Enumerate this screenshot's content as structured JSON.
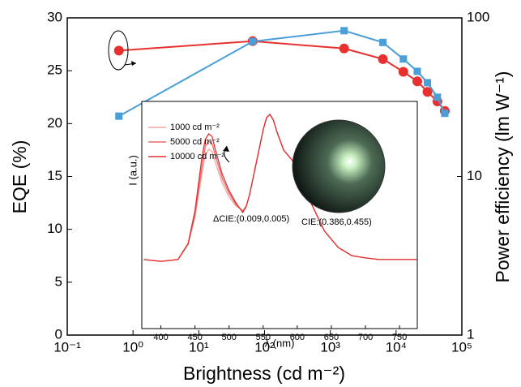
{
  "chart_data": [
    {
      "type": "line",
      "x_label": "Brightness (cd m⁻²)",
      "y_label": "EQE (%)",
      "y2_label": "Power efficiency (lm W⁻¹)",
      "xlog": true,
      "y2log": true,
      "x": [
        0.61,
        66,
        1620,
        6300,
        12900,
        21000,
        30000,
        42500,
        55000
      ],
      "series": [
        {
          "color": "#e8312f",
          "marker": "circle",
          "values": [
            26.9,
            27.8,
            27.1,
            26.1,
            24.9,
            24.0,
            23.0,
            22.1,
            21.2
          ]
        },
        {
          "color": "#4a9fd8",
          "marker": "square",
          "axis": "y2",
          "values": [
            24,
            71,
            83,
            70,
            55,
            46,
            39,
            31.6,
            25
          ]
        }
      ],
      "xlim": [
        0.1,
        100000
      ],
      "xticks": [
        {
          "value": 0.1,
          "label": "10⁻¹"
        },
        {
          "value": 1,
          "label": "10⁰"
        },
        {
          "value": 10,
          "label": "10¹"
        },
        {
          "value": 100,
          "label": "10²"
        },
        {
          "value": 1000,
          "label": "10³"
        },
        {
          "value": 10000,
          "label": "10⁴"
        },
        {
          "value": 100000,
          "label": "10⁵"
        }
      ],
      "ylim": [
        0,
        30
      ],
      "yticks": [
        0,
        5,
        10,
        15,
        20,
        25,
        30
      ],
      "y2lim": [
        1,
        100
      ],
      "y2ticks": [
        1,
        10,
        100
      ]
    },
    {
      "type": "line",
      "x_label": "λ (nm)",
      "y_label": "I (a.u.)",
      "x": [
        375,
        400,
        425,
        440,
        450,
        460,
        465,
        470,
        475,
        480,
        490,
        500,
        510,
        520,
        525,
        530,
        540,
        550,
        555,
        560,
        565,
        570,
        580,
        590,
        600,
        610,
        620,
        640,
        660,
        680,
        700,
        720,
        740,
        760,
        775
      ],
      "series": [
        {
          "name": "1000 cd m⁻²",
          "color": "#f4a3a3",
          "values": [
            0.304,
            0.296,
            0.304,
            0.37,
            0.49,
            0.68,
            0.76,
            0.79,
            0.78,
            0.73,
            0.64,
            0.58,
            0.54,
            0.52,
            0.54,
            0.59,
            0.73,
            0.875,
            0.929,
            0.943,
            0.918,
            0.868,
            0.786,
            0.75,
            0.714,
            0.643,
            0.554,
            0.429,
            0.357,
            0.321,
            0.311,
            0.304,
            0.304,
            0.304,
            0.304
          ]
        },
        {
          "name": "5000 cd m⁻²",
          "color": "#ec6a6a",
          "values": [
            0.304,
            0.296,
            0.304,
            0.372,
            0.5,
            0.71,
            0.8,
            0.825,
            0.815,
            0.76,
            0.66,
            0.595,
            0.547,
            0.515,
            0.538,
            0.589,
            0.732,
            0.875,
            0.929,
            0.943,
            0.918,
            0.868,
            0.786,
            0.75,
            0.714,
            0.643,
            0.554,
            0.429,
            0.357,
            0.321,
            0.311,
            0.304,
            0.304,
            0.304,
            0.304
          ]
        },
        {
          "name": "10000 cd m⁻²",
          "color": "#e03030",
          "values": [
            0.304,
            0.296,
            0.304,
            0.375,
            0.518,
            0.75,
            0.832,
            0.857,
            0.846,
            0.786,
            0.679,
            0.607,
            0.554,
            0.511,
            0.536,
            0.589,
            0.732,
            0.875,
            0.929,
            0.943,
            0.918,
            0.868,
            0.786,
            0.75,
            0.714,
            0.643,
            0.554,
            0.429,
            0.357,
            0.321,
            0.311,
            0.304,
            0.304,
            0.304,
            0.304
          ]
        }
      ],
      "xlim": [
        372,
        776
      ],
      "xticks": [
        400,
        450,
        500,
        550,
        600,
        650,
        700,
        750
      ],
      "ylim": [
        0,
        1
      ],
      "annotations": [
        "ΔCIE:(0.009,0.005)",
        "CIE:(0.386,0.455)"
      ]
    }
  ]
}
